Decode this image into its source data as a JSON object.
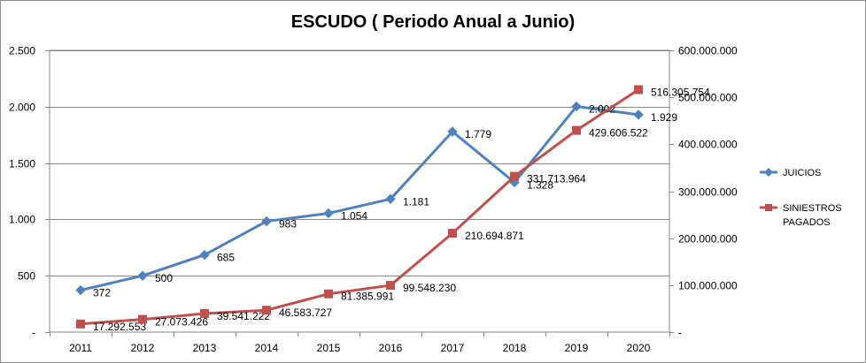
{
  "chart_data": {
    "type": "line",
    "title": "ESCUDO ( Periodo Anual a Junio)",
    "categories": [
      "2011",
      "2012",
      "2013",
      "2014",
      "2015",
      "2016",
      "2017",
      "2018",
      "2019",
      "2020"
    ],
    "y_left": {
      "range": [
        0,
        2500
      ],
      "ticks": [
        "-",
        "500",
        "1.000",
        "1.500",
        "2.000",
        "2.500"
      ],
      "tick_values": [
        0,
        500,
        1000,
        1500,
        2000,
        2500
      ]
    },
    "y_right": {
      "range": [
        0,
        600000000
      ],
      "ticks": [
        "-",
        "100.000.000",
        "200.000.000",
        "300.000.000",
        "400.000.000",
        "500.000.000",
        "600.000.000"
      ],
      "tick_values": [
        0,
        100000000,
        200000000,
        300000000,
        400000000,
        500000000,
        600000000
      ]
    },
    "grid": true,
    "legend_position": "right",
    "series": [
      {
        "name": "JUICIOS",
        "axis": "left",
        "color": "#4F81BD",
        "marker": "diamond",
        "values": [
          372,
          500,
          685,
          983,
          1054,
          1181,
          1779,
          1328,
          2002,
          1929
        ],
        "labels": [
          "372",
          "500",
          "685",
          "983",
          "1.054",
          "1.181",
          "1.779",
          "1.328",
          "2.002",
          "1.929"
        ]
      },
      {
        "name": "SINIESTROS PAGADOS",
        "legend_lines": [
          "SINIESTROS",
          "PAGADOS"
        ],
        "axis": "right",
        "color": "#C0504D",
        "marker": "square",
        "values": [
          17292553,
          27073426,
          39541222,
          46583727,
          81385991,
          99548230,
          210694871,
          331713964,
          429606522,
          516305754
        ],
        "labels": [
          "17.292.553",
          "27.073.426",
          "39.541.222",
          "46.583.727",
          "81.385.991",
          "99.548.230",
          "210.694.871",
          "331.713.964",
          "429.606.522",
          "516.305.754"
        ]
      }
    ]
  }
}
